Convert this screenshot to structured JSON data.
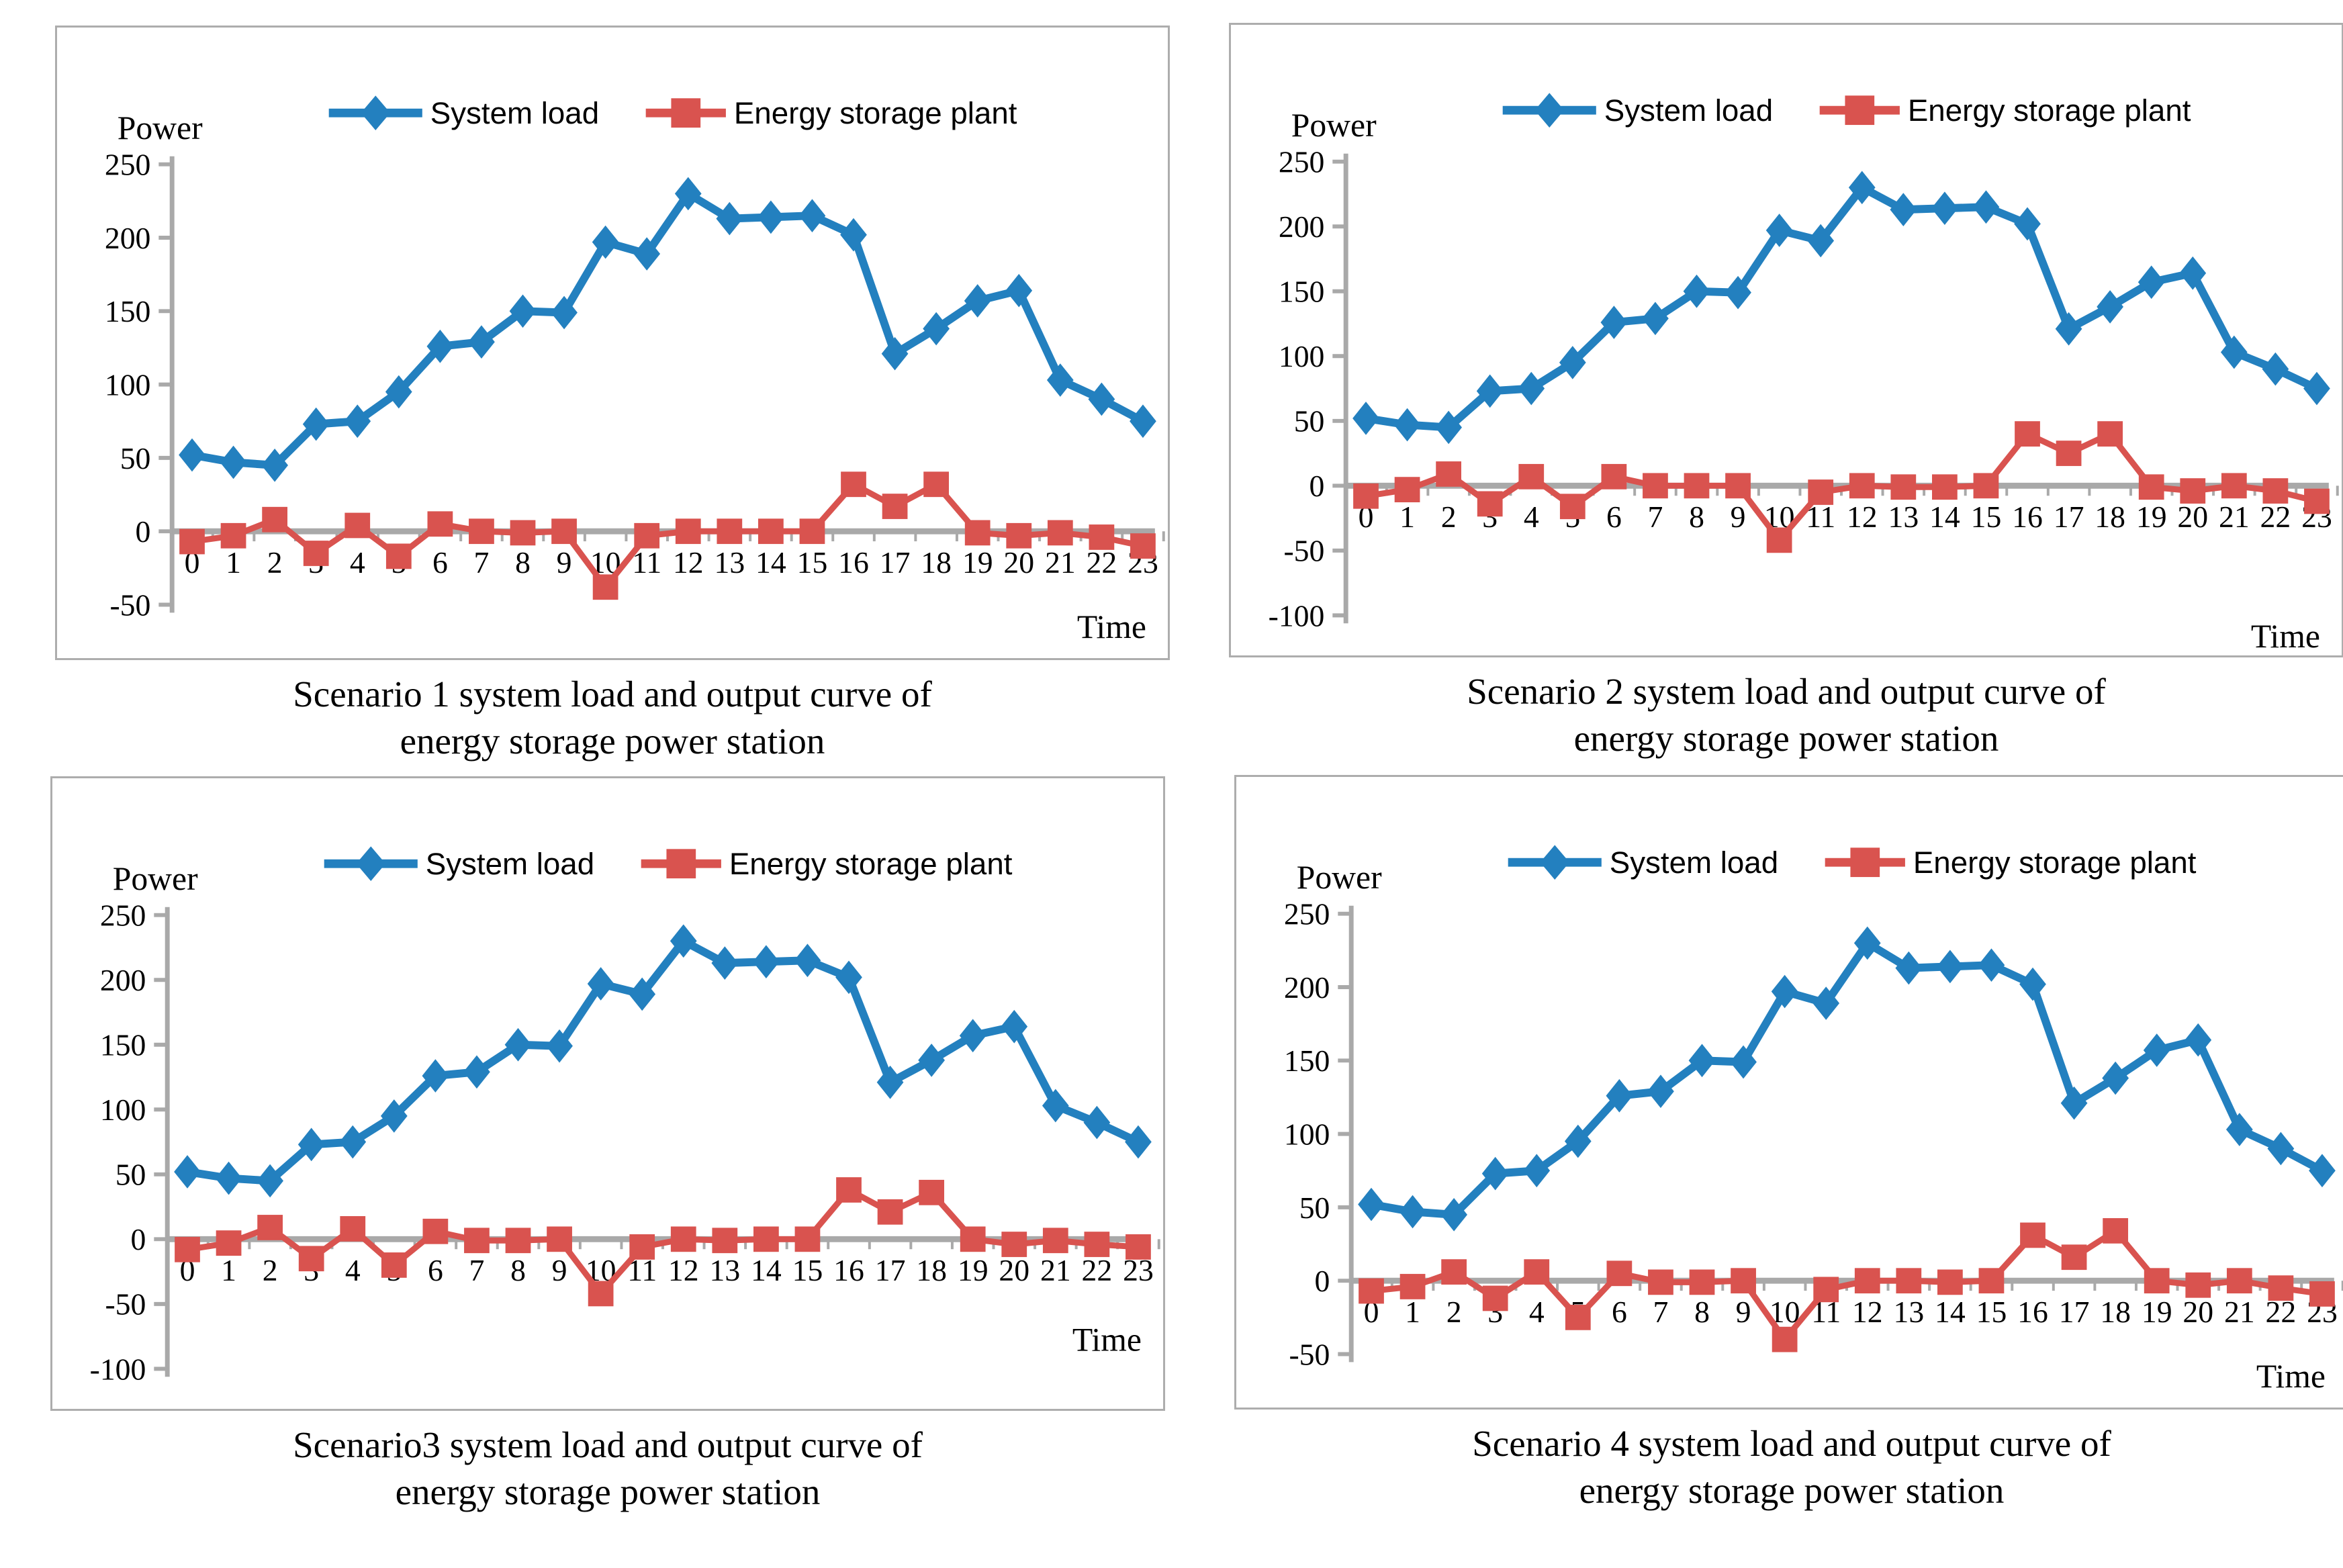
{
  "page": {
    "background": "#ffffff"
  },
  "colors": {
    "system_load": "#2380BF",
    "energy_storage": "#D9534F",
    "axis_gray": "#a9a9a9",
    "border_gray": "#adadad",
    "text": "#000000"
  },
  "legend": {
    "system_load_label": "System load",
    "energy_storage_label": "Energy storage plant"
  },
  "axis_labels": {
    "y": "Power",
    "x": "Time"
  },
  "chart_data": [
    {
      "id": "scenario-1",
      "type": "line",
      "title": "Scenario 1 system load and output curve of energy storage power station",
      "caption_lines": [
        "Scenario 1 system load and output curve of",
        "energy storage power station"
      ],
      "xlabel": "Time",
      "ylabel": "Power",
      "ylim": [
        -50,
        250
      ],
      "yticks": [
        250,
        200,
        150,
        100,
        50,
        0,
        -50
      ],
      "grid": false,
      "legend_position": "top-center",
      "categories": [
        0,
        1,
        2,
        3,
        4,
        5,
        6,
        7,
        8,
        9,
        10,
        11,
        12,
        13,
        14,
        15,
        16,
        17,
        18,
        19,
        20,
        21,
        22,
        23
      ],
      "series": [
        {
          "name": "System load",
          "marker": "diamond",
          "color": "#2380BF",
          "values": [
            52,
            47,
            45,
            73,
            75,
            95,
            126,
            129,
            150,
            149,
            197,
            189,
            230,
            213,
            214,
            215,
            202,
            121,
            138,
            157,
            164,
            103,
            90,
            75
          ]
        },
        {
          "name": "Energy storage plant",
          "marker": "square",
          "color": "#D9534F",
          "values": [
            -7,
            -3,
            8,
            -15,
            4,
            -17,
            5,
            0,
            -1,
            0,
            -38,
            -3,
            0,
            0,
            0,
            0,
            32,
            17,
            32,
            -1,
            -3,
            -1,
            -4,
            -10
          ]
        }
      ]
    },
    {
      "id": "scenario-2",
      "type": "line",
      "title": "Scenario 2 system load and output curve of energy storage power station",
      "caption_lines": [
        "Scenario 2 system load and output curve of",
        "energy storage power station"
      ],
      "xlabel": "Time",
      "ylabel": "Power",
      "ylim": [
        -100,
        250
      ],
      "yticks": [
        250,
        200,
        150,
        100,
        50,
        0,
        -50,
        -100
      ],
      "grid": false,
      "legend_position": "top-center",
      "categories": [
        0,
        1,
        2,
        3,
        4,
        5,
        6,
        7,
        8,
        9,
        10,
        11,
        12,
        13,
        14,
        15,
        16,
        17,
        18,
        19,
        20,
        21,
        22,
        23
      ],
      "series": [
        {
          "name": "System load",
          "marker": "diamond",
          "color": "#2380BF",
          "values": [
            52,
            47,
            45,
            73,
            75,
            95,
            126,
            129,
            150,
            149,
            197,
            189,
            230,
            213,
            214,
            215,
            202,
            121,
            138,
            157,
            164,
            103,
            90,
            75
          ]
        },
        {
          "name": "Energy storage plant",
          "marker": "square",
          "color": "#D9534F",
          "values": [
            -8,
            -3,
            9,
            -14,
            7,
            -16,
            7,
            0,
            0,
            0,
            -42,
            -5,
            0,
            -1,
            -1,
            0,
            40,
            25,
            40,
            -1,
            -4,
            0,
            -4,
            -12
          ]
        }
      ]
    },
    {
      "id": "scenario-3",
      "type": "line",
      "title": "Scenario3 system load and output curve of energy storage power station",
      "caption_lines": [
        "Scenario3 system load and output curve of",
        "energy storage power station"
      ],
      "xlabel": "Time",
      "ylabel": "Power",
      "ylim": [
        -100,
        250
      ],
      "yticks": [
        250,
        200,
        150,
        100,
        50,
        0,
        -50,
        -100
      ],
      "grid": false,
      "legend_position": "top-center",
      "categories": [
        0,
        1,
        2,
        3,
        4,
        5,
        6,
        7,
        8,
        9,
        10,
        11,
        12,
        13,
        14,
        15,
        16,
        17,
        18,
        19,
        20,
        21,
        22,
        23
      ],
      "series": [
        {
          "name": "System load",
          "marker": "diamond",
          "color": "#2380BF",
          "values": [
            52,
            47,
            45,
            73,
            75,
            95,
            126,
            129,
            150,
            149,
            197,
            189,
            230,
            213,
            214,
            215,
            202,
            121,
            138,
            157,
            164,
            103,
            90,
            75
          ]
        },
        {
          "name": "Energy storage plant",
          "marker": "square",
          "color": "#D9534F",
          "values": [
            -8,
            -3,
            9,
            -15,
            8,
            -20,
            6,
            -1,
            -1,
            0,
            -42,
            -6,
            0,
            -1,
            0,
            0,
            38,
            21,
            36,
            0,
            -4,
            -1,
            -4,
            -6
          ]
        }
      ]
    },
    {
      "id": "scenario-4",
      "type": "line",
      "title": "Scenario 4 system load and output curve of energy storage power station",
      "caption_lines": [
        "Scenario 4 system load and output curve of",
        "energy storage power station"
      ],
      "xlabel": "Time",
      "ylabel": "Power",
      "ylim": [
        -50,
        250
      ],
      "yticks": [
        250,
        200,
        150,
        100,
        50,
        0,
        -50
      ],
      "grid": false,
      "legend_position": "top-center",
      "categories": [
        0,
        1,
        2,
        3,
        4,
        5,
        6,
        7,
        8,
        9,
        10,
        11,
        12,
        13,
        14,
        15,
        16,
        17,
        18,
        19,
        20,
        21,
        22,
        23
      ],
      "series": [
        {
          "name": "System load",
          "marker": "diamond",
          "color": "#2380BF",
          "values": [
            52,
            47,
            45,
            73,
            75,
            95,
            126,
            129,
            150,
            149,
            197,
            189,
            230,
            213,
            214,
            215,
            202,
            121,
            138,
            157,
            164,
            103,
            90,
            75
          ]
        },
        {
          "name": "Energy storage plant",
          "marker": "square",
          "color": "#D9534F",
          "values": [
            -7,
            -4,
            6,
            -12,
            6,
            -25,
            5,
            -1,
            -1,
            0,
            -40,
            -6,
            0,
            0,
            -1,
            0,
            31,
            16,
            34,
            0,
            -3,
            0,
            -5,
            -9
          ]
        }
      ]
    }
  ]
}
